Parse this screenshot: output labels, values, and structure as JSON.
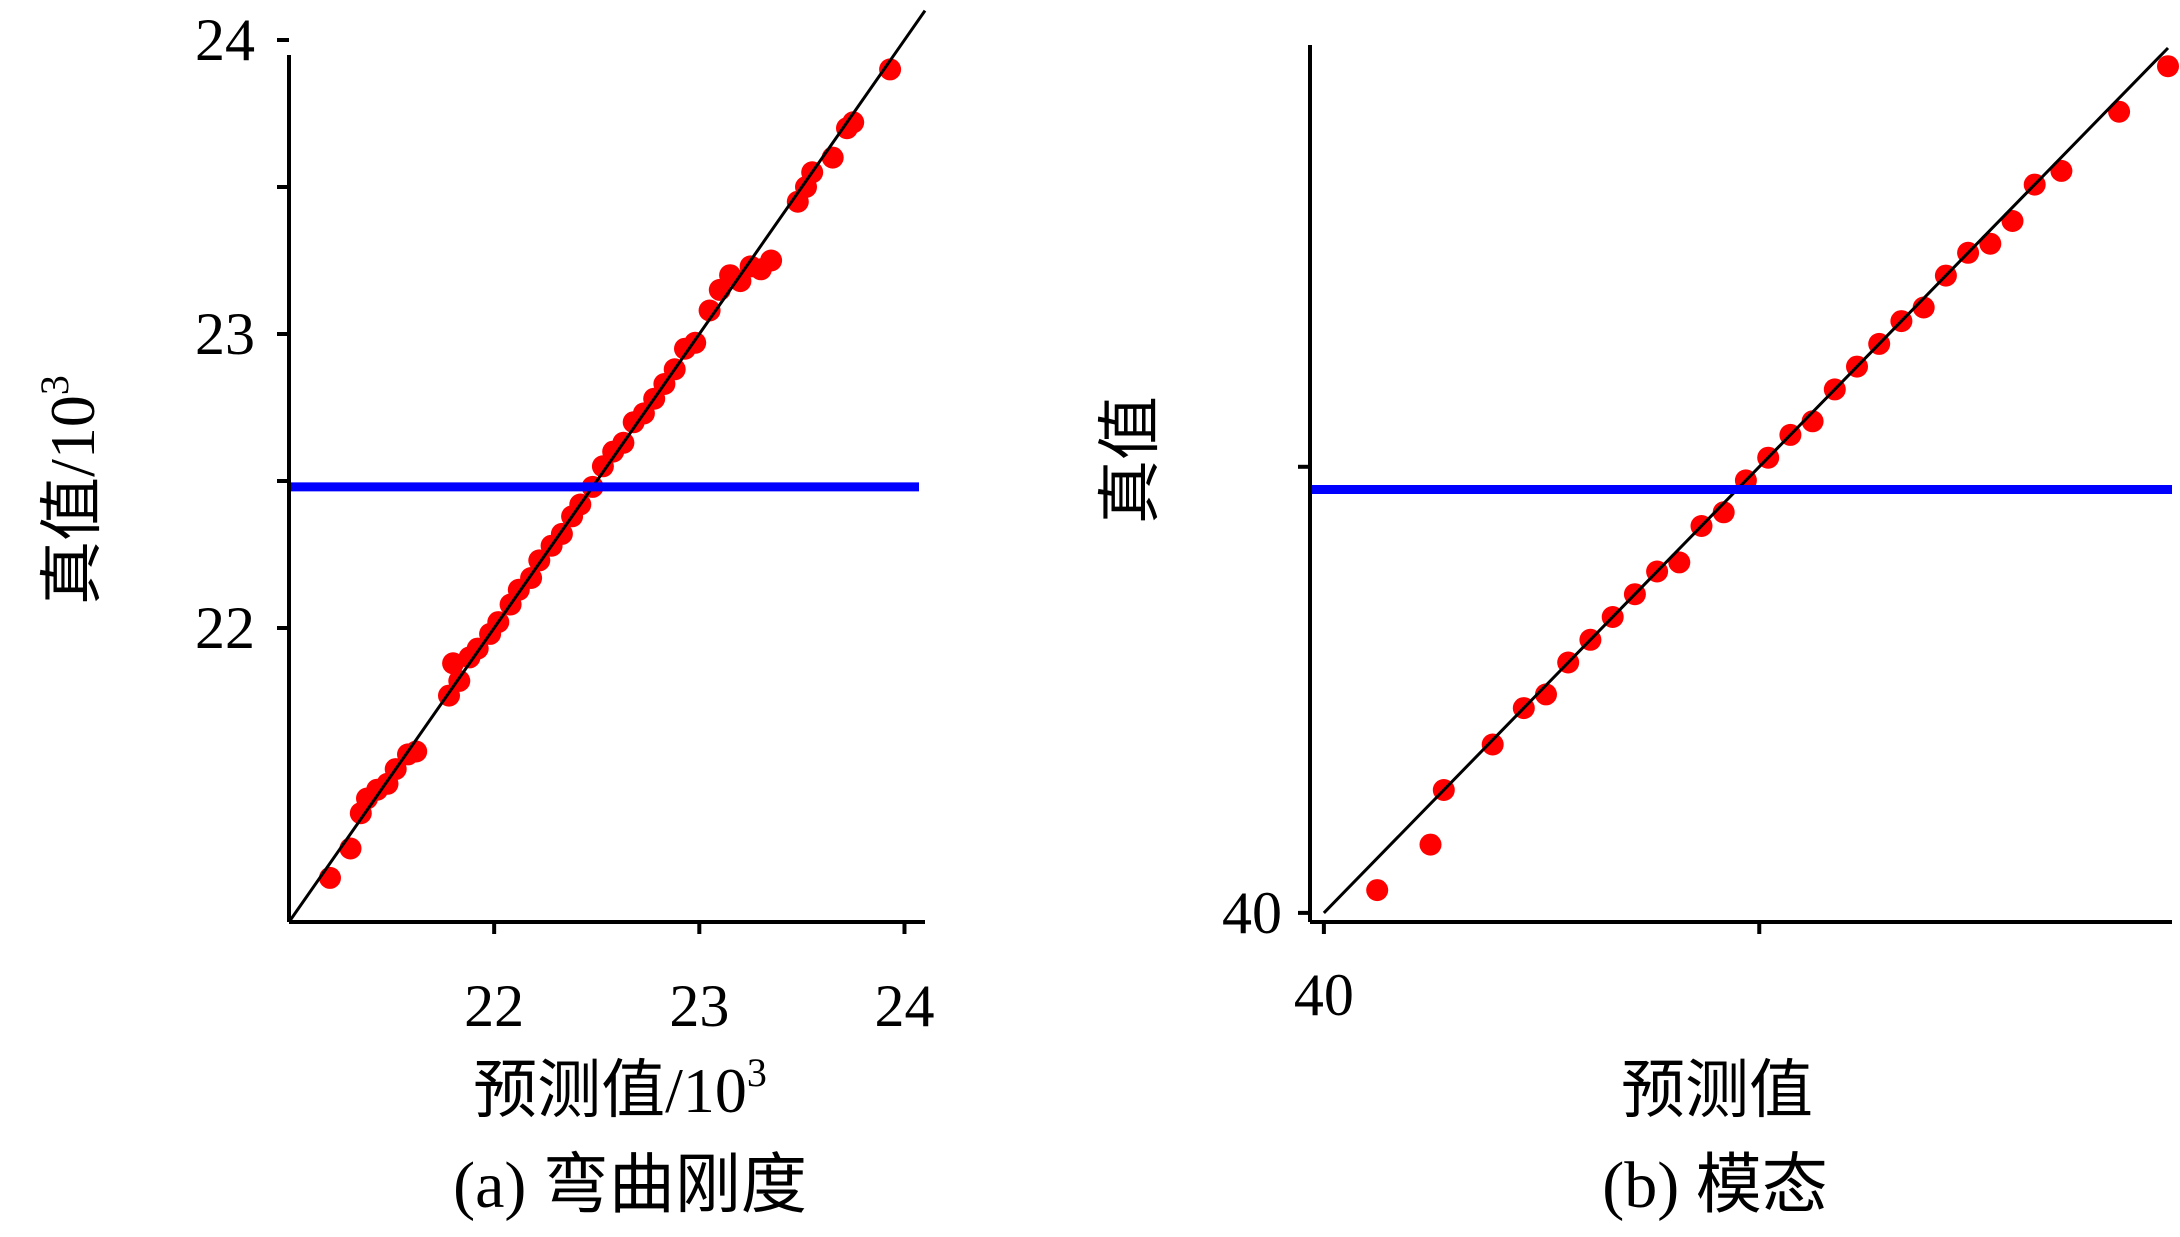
{
  "colors": {
    "points": "#ff0000",
    "fit_line": "#000000",
    "reference_line": "#0000ff",
    "axes": "#000000"
  },
  "chart_data": [
    {
      "type": "scatter",
      "caption": "(a) 弯曲刚度",
      "xlabel": "预测值/10",
      "xlabel_sup": "3",
      "ylabel": "真值/10",
      "ylabel_sup": "3",
      "xlim": [
        21.0,
        24.1
      ],
      "ylim": [
        21.0,
        24.0
      ],
      "x_ticks": [
        {
          "value": 22,
          "label": "22"
        },
        {
          "value": 23,
          "label": "23"
        },
        {
          "value": 24,
          "label": "24"
        }
      ],
      "y_ticks": [
        {
          "value": 22,
          "label": "22"
        },
        {
          "value": 23,
          "label": "23"
        },
        {
          "value": 24,
          "label": "24"
        }
      ],
      "y_minor_ticks": [
        22.5,
        23.5
      ],
      "fit_line": {
        "x": [
          21.0,
          24.1
        ],
        "y": [
          21.0,
          24.1
        ]
      },
      "reference_line": {
        "y": 22.48
      },
      "points": {
        "x": [
          21.2,
          21.35,
          21.3,
          21.38,
          21.43,
          21.48,
          21.52,
          21.58,
          21.62,
          21.78,
          21.8,
          21.83,
          21.88,
          21.92,
          21.98,
          22.02,
          22.08,
          22.12,
          22.18,
          22.22,
          22.28,
          22.33,
          22.38,
          22.42,
          22.48,
          22.53,
          22.58,
          22.63,
          22.68,
          22.73,
          22.78,
          22.83,
          22.88,
          22.93,
          22.98,
          23.05,
          23.1,
          23.15,
          23.2,
          23.25,
          23.3,
          23.35,
          23.48,
          23.52,
          23.55,
          23.65,
          23.72,
          23.75,
          23.93
        ],
        "y": [
          21.15,
          21.37,
          21.25,
          21.42,
          21.45,
          21.47,
          21.52,
          21.57,
          21.58,
          21.77,
          21.88,
          21.82,
          21.9,
          21.93,
          21.98,
          22.02,
          22.08,
          22.13,
          22.17,
          22.23,
          22.28,
          22.32,
          22.38,
          22.42,
          22.48,
          22.55,
          22.6,
          22.63,
          22.7,
          22.73,
          22.78,
          22.83,
          22.88,
          22.95,
          22.97,
          23.08,
          23.15,
          23.2,
          23.18,
          23.23,
          23.22,
          23.25,
          23.45,
          23.5,
          23.55,
          23.6,
          23.7,
          23.72,
          23.9
        ]
      }
    },
    {
      "type": "scatter",
      "caption": "(b) 模态",
      "xlabel": "预测值",
      "ylabel": "真值",
      "xlim": [
        39.98,
        41.9
      ],
      "ylim": [
        39.98,
        41.9
      ],
      "x_ticks": [
        {
          "value": 40,
          "label": "40"
        },
        {
          "value": 40.98,
          "label": ""
        }
      ],
      "y_ticks": [
        {
          "value": 40,
          "label": "40"
        },
        {
          "value": 40.98,
          "label": ""
        }
      ],
      "fit_line": {
        "x": [
          40.0,
          41.9
        ],
        "y": [
          40.0,
          41.9
        ]
      },
      "reference_line": {
        "y": 40.93
      },
      "points": {
        "x": [
          40.12,
          40.24,
          40.27,
          40.38,
          40.45,
          40.5,
          40.55,
          40.6,
          40.65,
          40.7,
          40.75,
          40.8,
          40.85,
          40.9,
          40.95,
          41.0,
          41.05,
          41.1,
          41.15,
          41.2,
          41.25,
          41.3,
          41.35,
          41.4,
          41.45,
          41.5,
          41.55,
          41.6,
          41.66,
          41.79,
          41.9
        ],
        "y": [
          40.05,
          40.15,
          40.27,
          40.37,
          40.45,
          40.48,
          40.55,
          40.6,
          40.65,
          40.7,
          40.75,
          40.77,
          40.85,
          40.88,
          40.95,
          41.0,
          41.05,
          41.08,
          41.15,
          41.2,
          41.25,
          41.3,
          41.33,
          41.4,
          41.45,
          41.47,
          41.52,
          41.6,
          41.63,
          41.76,
          41.86
        ]
      }
    }
  ]
}
